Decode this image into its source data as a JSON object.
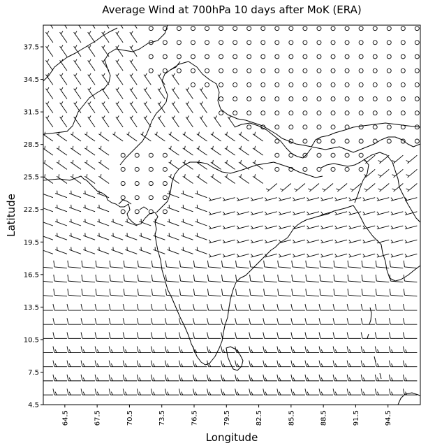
{
  "chart_data": {
    "type": "wind-barb-map",
    "title": "Average Wind at 700hPa 10 days after MoK (ERA)",
    "xlabel": "Longitude",
    "ylabel": "Latitude",
    "xlim": [
      62.5,
      97.5
    ],
    "ylim": [
      4.5,
      39.5
    ],
    "xticks": [
      "64.5",
      "67.5",
      "70.5",
      "73.5",
      "76.5",
      "79.5",
      "82.5",
      "85.5",
      "88.5",
      "91.5",
      "94.5"
    ],
    "yticks": [
      "4.5",
      "7.5",
      "10.5",
      "13.5",
      "16.5",
      "19.5",
      "22.5",
      "25.5",
      "28.5",
      "31.5",
      "34.5",
      "37.5"
    ],
    "grid_spacing_deg": 1.3,
    "calm_symbol": "circle",
    "barb_color": "#000000",
    "coastline_color": "#000000",
    "wind_regimes": [
      {
        "region": "south of 15N",
        "wind": "westerly, ~10-15 kt (full barbs)"
      },
      {
        "region": "Arabian Sea / west India 15-25N",
        "wind": "west-northwesterly, ~5-10 kt"
      },
      {
        "region": "northwest (Pakistan/Afghanistan)",
        "wind": "northwesterly, ~5 kt"
      },
      {
        "region": "Tibetan Plateau / Himalaya",
        "wind": "calm (circles)"
      },
      {
        "region": "northeast India / Bay of Bengal head",
        "wind": "southwesterly, ~5 kt"
      }
    ]
  }
}
